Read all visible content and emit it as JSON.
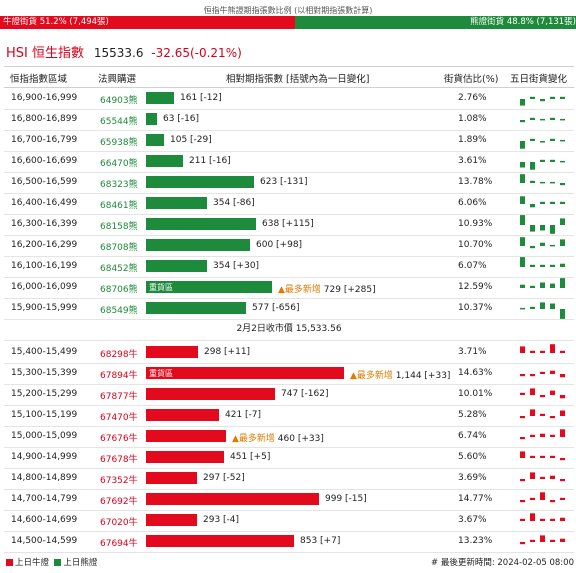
{
  "caption": "恒指牛熊證期指張數比例 (以相對期指張數計算)",
  "ratio": {
    "bull_label": "牛證街貨 51.2% (7,494張)",
    "bull_pct": 51.2,
    "bear_label": "熊證街貨 48.8% (7,131張)",
    "bear_pct": 48.8
  },
  "hsi": {
    "name": "HSI 恒生指數",
    "price": "15533.6",
    "change": "-32.65(-0.21%)"
  },
  "headers": {
    "range": "恒指指數區域",
    "count": "法興購選",
    "relative": "相對期指張數 [括號內為一日變化]",
    "pct": "街貨估比(%)",
    "five": "五日街貨變化"
  },
  "bear_rows": [
    {
      "range": "16,900-16,999",
      "count": "64903熊",
      "value": "161 [-12]",
      "pct": "2.76%",
      "size": 161,
      "mini": [
        {
          "up": 0,
          "h": 6
        },
        {
          "up": 1,
          "h": 2
        },
        {
          "up": 0,
          "h": 2
        },
        {
          "up": 1,
          "h": 2
        },
        {
          "up": 1,
          "h": 2
        }
      ]
    },
    {
      "range": "16,800-16,899",
      "count": "65544熊",
      "value": "63 [-16]",
      "pct": "1.08%",
      "size": 63,
      "mini": [
        {
          "up": 0,
          "h": 2
        },
        {
          "up": 1,
          "h": 2
        },
        {
          "up": 1,
          "h": 1
        },
        {
          "up": 1,
          "h": 2
        },
        {
          "up": 1,
          "h": 1
        }
      ]
    },
    {
      "range": "16,700-16,799",
      "count": "65938熊",
      "value": "105 [-29]",
      "pct": "1.89%",
      "size": 105,
      "mini": [
        {
          "up": 0,
          "h": 7
        },
        {
          "up": 1,
          "h": 2
        },
        {
          "up": 0,
          "h": 1
        },
        {
          "up": 1,
          "h": 2
        },
        {
          "up": 1,
          "h": 1
        }
      ]
    },
    {
      "range": "16,600-16,699",
      "count": "66470熊",
      "value": "211 [-16]",
      "pct": "3.61%",
      "size": 211,
      "mini": [
        {
          "up": 0,
          "h": 5
        },
        {
          "up": 0,
          "h": 7
        },
        {
          "up": 1,
          "h": 2
        },
        {
          "up": 1,
          "h": 2
        },
        {
          "up": 1,
          "h": 1
        }
      ]
    },
    {
      "range": "16,500-16,599",
      "count": "68323熊",
      "value": "623 [-131]",
      "pct": "13.78%",
      "size": 623,
      "mini": [
        {
          "up": 1,
          "h": 8
        },
        {
          "up": 1,
          "h": 2
        },
        {
          "up": 1,
          "h": 1
        },
        {
          "up": 1,
          "h": 1
        },
        {
          "up": 0,
          "h": 2
        }
      ]
    },
    {
      "range": "16,400-16,499",
      "count": "68461熊",
      "value": "354 [-86]",
      "pct": "6.06%",
      "size": 354,
      "mini": [
        {
          "up": 1,
          "h": 7
        },
        {
          "up": 0,
          "h": 3
        },
        {
          "up": 1,
          "h": 2
        },
        {
          "up": 1,
          "h": 2
        },
        {
          "up": 1,
          "h": 2
        }
      ]
    },
    {
      "range": "16,300-16,399",
      "count": "68158熊",
      "value": "638 [+115]",
      "pct": "10.93%",
      "size": 638,
      "mini": [
        {
          "up": 1,
          "h": 9
        },
        {
          "up": 0,
          "h": 6
        },
        {
          "up": 0,
          "h": 5
        },
        {
          "up": 0,
          "h": 8
        },
        {
          "up": 1,
          "h": 6
        }
      ]
    },
    {
      "range": "16,200-16,299",
      "count": "68708熊",
      "value": "600 [+98]",
      "pct": "10.70%",
      "size": 600,
      "mini": [
        {
          "up": 1,
          "h": 8
        },
        {
          "up": 0,
          "h": 2
        },
        {
          "up": 1,
          "h": 3
        },
        {
          "up": 1,
          "h": 1
        },
        {
          "up": 1,
          "h": 6
        }
      ]
    },
    {
      "range": "16,100-16,199",
      "count": "68452熊",
      "value": "354 [+30]",
      "pct": "6.07%",
      "size": 354,
      "mini": [
        {
          "up": 1,
          "h": 9
        },
        {
          "up": 1,
          "h": 2
        },
        {
          "up": 1,
          "h": 2
        },
        {
          "up": 1,
          "h": 2
        },
        {
          "up": 1,
          "h": 3
        }
      ]
    },
    {
      "range": "16,000-16,099",
      "count": "68706熊",
      "value": "729 [+285]",
      "pct": "12.59%",
      "size": 729,
      "label": "重貨區",
      "new": "▲最多新增",
      "mini": [
        {
          "up": 1,
          "h": 3
        },
        {
          "up": 1,
          "h": 2
        },
        {
          "up": 1,
          "h": 5
        },
        {
          "up": 1,
          "h": 4
        },
        {
          "up": 1,
          "h": 9
        }
      ]
    },
    {
      "range": "15,900-15,999",
      "count": "68549熊",
      "value": "577 [-656]",
      "pct": "10.37%",
      "size": 577,
      "mini": [
        {
          "up": 1,
          "h": 1
        },
        {
          "up": 1,
          "h": 2
        },
        {
          "up": 1,
          "h": 6
        },
        {
          "up": 1,
          "h": 5
        },
        {
          "up": 0,
          "h": 9
        }
      ]
    }
  ],
  "close_line": "2月2日收市價 15,533.56",
  "bull_rows": [
    {
      "range": "15,400-15,499",
      "count": "68298牛",
      "value": "298 [+11]",
      "pct": "3.71%",
      "size": 298,
      "mini": [
        {
          "up": 1,
          "h": 6
        },
        {
          "up": 1,
          "h": 2
        },
        {
          "up": 1,
          "h": 2
        },
        {
          "up": 1,
          "h": 8
        },
        {
          "up": 1,
          "h": 2
        }
      ]
    },
    {
      "range": "15,300-15,399",
      "count": "67894牛",
      "value": "1,144 [+33]",
      "pct": "14.63%",
      "size": 1144,
      "label": "重貨區",
      "new": "▲最多新增",
      "mini": [
        {
          "up": 0,
          "h": 2
        },
        {
          "up": 0,
          "h": 2
        },
        {
          "up": 1,
          "h": 2
        },
        {
          "up": 1,
          "h": 3
        },
        {
          "up": 0,
          "h": 3
        }
      ]
    },
    {
      "range": "15,200-15,299",
      "count": "67877牛",
      "value": "747 [-162]",
      "pct": "10.01%",
      "size": 747,
      "mini": [
        {
          "up": 1,
          "h": 2
        },
        {
          "up": 1,
          "h": 6
        },
        {
          "up": 0,
          "h": 2
        },
        {
          "up": 1,
          "h": 4
        },
        {
          "up": 0,
          "h": 3
        }
      ]
    },
    {
      "range": "15,100-15,199",
      "count": "67470牛",
      "value": "421 [-7]",
      "pct": "5.28%",
      "size": 421,
      "mini": [
        {
          "up": 0,
          "h": 2
        },
        {
          "up": 1,
          "h": 6
        },
        {
          "up": 1,
          "h": 2
        },
        {
          "up": 0,
          "h": 2
        },
        {
          "up": 1,
          "h": 5
        }
      ]
    },
    {
      "range": "15,000-15,099",
      "count": "67676牛",
      "value": "460 [+33]",
      "pct": "6.74%",
      "size": 460,
      "new": "▲最多新增",
      "mini": [
        {
          "up": 0,
          "h": 2
        },
        {
          "up": 1,
          "h": 2
        },
        {
          "up": 1,
          "h": 3
        },
        {
          "up": 1,
          "h": 2
        },
        {
          "up": 1,
          "h": 7
        }
      ]
    },
    {
      "range": "14,900-14,999",
      "count": "67678牛",
      "value": "451 [+5]",
      "pct": "5.60%",
      "size": 451,
      "mini": [
        {
          "up": 1,
          "h": 6
        },
        {
          "up": 1,
          "h": 2
        },
        {
          "up": 1,
          "h": 2
        },
        {
          "up": 1,
          "h": 2
        },
        {
          "up": 0,
          "h": 2
        }
      ]
    },
    {
      "range": "14,800-14,899",
      "count": "67352牛",
      "value": "297 [-52]",
      "pct": "3.69%",
      "size": 297,
      "mini": [
        {
          "up": 0,
          "h": 2
        },
        {
          "up": 1,
          "h": 6
        },
        {
          "up": 1,
          "h": 2
        },
        {
          "up": 1,
          "h": 3
        },
        {
          "up": 0,
          "h": 2
        }
      ]
    },
    {
      "range": "14,700-14,799",
      "count": "67692牛",
      "value": "999 [-15]",
      "pct": "14.77%",
      "size": 999,
      "mini": [
        {
          "up": 0,
          "h": 2
        },
        {
          "up": 1,
          "h": 2
        },
        {
          "up": 1,
          "h": 7
        },
        {
          "up": 0,
          "h": 2
        },
        {
          "up": 1,
          "h": 2
        }
      ]
    },
    {
      "range": "14,600-14,699",
      "count": "67020牛",
      "value": "293 [-4]",
      "pct": "3.67%",
      "size": 293,
      "mini": [
        {
          "up": 1,
          "h": 2
        },
        {
          "up": 1,
          "h": 7
        },
        {
          "up": 1,
          "h": 2
        },
        {
          "up": 1,
          "h": 2
        },
        {
          "up": 1,
          "h": 3
        }
      ]
    },
    {
      "range": "14,500-14,599",
      "count": "67694牛",
      "value": "853 [+7]",
      "pct": "13.23%",
      "size": 853,
      "mini": [
        {
          "up": 0,
          "h": 2
        },
        {
          "up": 1,
          "h": 2
        },
        {
          "up": 1,
          "h": 6
        },
        {
          "up": 1,
          "h": 2
        },
        {
          "up": 1,
          "h": 3
        }
      ]
    }
  ],
  "legend": {
    "bull": "上日牛證",
    "bear": "上日熊證"
  },
  "updated": "# 最後更新時間: 2024-02-05 08:00",
  "colors": {
    "bull": "#e30a1e",
    "bear": "#1e8a3c",
    "new": "#e07b00"
  }
}
